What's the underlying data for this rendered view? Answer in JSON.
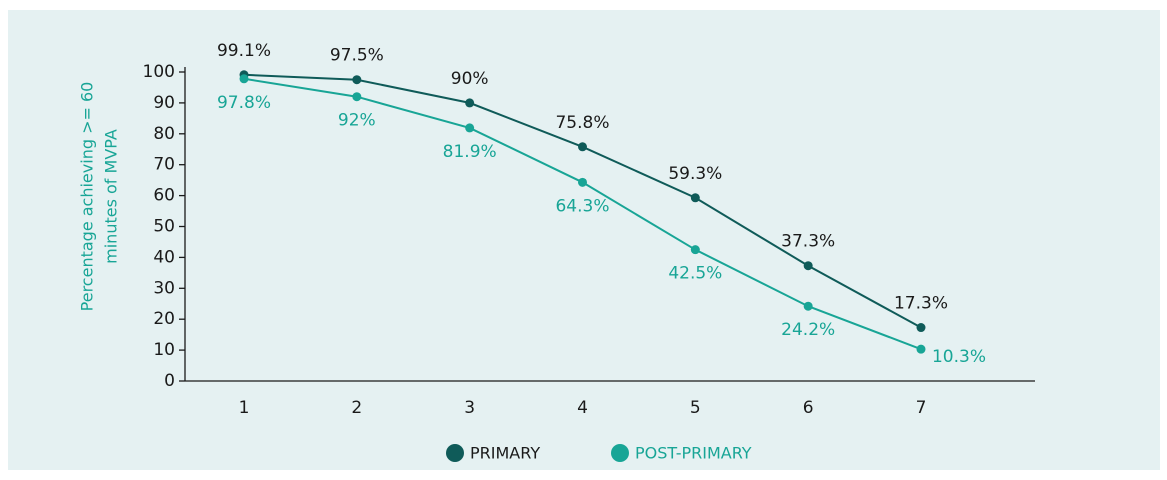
{
  "chart_data": {
    "type": "line",
    "ylabel": [
      "Percentage achieving >= 60",
      "minutes of MVPA"
    ],
    "categories": [
      "1",
      "2",
      "3",
      "4",
      "5",
      "6",
      "7"
    ],
    "series": [
      {
        "name": "PRIMARY",
        "color": "#0f5b59",
        "values": [
          99.1,
          97.5,
          90,
          75.8,
          59.3,
          37.3,
          17.3
        ],
        "value_labels": [
          "99.1%",
          "97.5%",
          "90%",
          "75.8%",
          "59.3%",
          "37.3%",
          "17.3%"
        ]
      },
      {
        "name": "POST-PRIMARY",
        "color": "#18a596",
        "values": [
          97.8,
          92,
          81.9,
          64.3,
          42.5,
          24.2,
          10.3
        ],
        "value_labels": [
          "97.8%",
          "92%",
          "81.9%",
          "64.3%",
          "42.5%",
          "24.2%",
          "10.3%"
        ]
      }
    ],
    "ylim": [
      0,
      100
    ],
    "yticks": [
      0,
      10,
      20,
      30,
      40,
      50,
      60,
      70,
      80,
      90,
      100
    ],
    "grid": false,
    "legend": "bottom"
  }
}
